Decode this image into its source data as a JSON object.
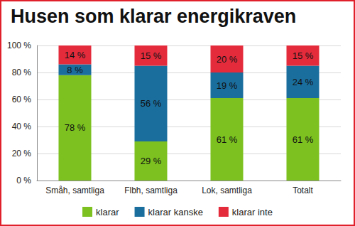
{
  "chart_data": {
    "type": "bar",
    "title": "Husen som klarar energikraven",
    "categories": [
      "Småh, samtliga",
      "Flbh, samtliga",
      "Lok, samtliga",
      "Totalt"
    ],
    "series": [
      {
        "name": "klarar",
        "color": "#7cc11f",
        "values": [
          78,
          29,
          61,
          61
        ],
        "value_labels": [
          "78 %",
          "29 %",
          "61 %",
          "61 %"
        ]
      },
      {
        "name": "klarar kanske",
        "color": "#1a6e9e",
        "values": [
          8,
          56,
          19,
          24
        ],
        "value_labels": [
          "8 %",
          "56 %",
          "19 %",
          "24 %"
        ]
      },
      {
        "name": "klarar inte",
        "color": "#e42b3c",
        "values": [
          14,
          15,
          20,
          15
        ],
        "value_labels": [
          "14 %",
          "15 %",
          "20 %",
          "15 %"
        ]
      }
    ],
    "ylim": [
      0,
      100
    ],
    "yticks": [
      {
        "value": 0,
        "label": "0 %"
      },
      {
        "value": 20,
        "label": "20 %"
      },
      {
        "value": 40,
        "label": "40 %"
      },
      {
        "value": 60,
        "label": "60 %"
      },
      {
        "value": 80,
        "label": "80 %"
      },
      {
        "value": 100,
        "label": "100 %"
      }
    ],
    "grid": true,
    "stacked": true,
    "data_labels": true,
    "legend": "bottom"
  }
}
